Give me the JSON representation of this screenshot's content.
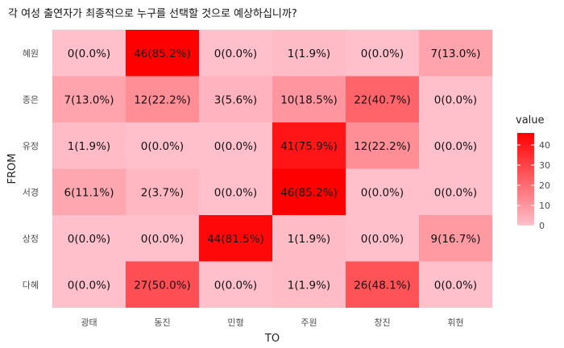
{
  "chart_data": {
    "type": "heatmap",
    "title": "각 여성 출연자가 최종적으로 누구를 선택할 것으로 예상하십니까?",
    "xlabel": "TO",
    "ylabel": "FROM",
    "x_categories": [
      "광태",
      "동진",
      "민형",
      "주원",
      "창진",
      "휘현"
    ],
    "y_categories": [
      "혜원",
      "종은",
      "유정",
      "서경",
      "상정",
      "다혜"
    ],
    "values": [
      [
        0,
        46,
        0,
        1,
        0,
        7
      ],
      [
        7,
        12,
        3,
        10,
        22,
        0
      ],
      [
        1,
        0,
        0,
        41,
        12,
        0
      ],
      [
        6,
        2,
        0,
        46,
        0,
        0
      ],
      [
        0,
        0,
        44,
        1,
        0,
        9
      ],
      [
        0,
        27,
        0,
        1,
        26,
        0
      ]
    ],
    "cell_labels": [
      [
        "0(0.0%)",
        "46(85.2%)",
        "0(0.0%)",
        "1(1.9%)",
        "0(0.0%)",
        "7(13.0%)"
      ],
      [
        "7(13.0%)",
        "12(22.2%)",
        "3(5.6%)",
        "10(18.5%)",
        "22(40.7%)",
        "0(0.0%)"
      ],
      [
        "1(1.9%)",
        "0(0.0%)",
        "0(0.0%)",
        "41(75.9%)",
        "12(22.2%)",
        "0(0.0%)"
      ],
      [
        "6(11.1%)",
        "2(3.7%)",
        "0(0.0%)",
        "46(85.2%)",
        "0(0.0%)",
        "0(0.0%)"
      ],
      [
        "0(0.0%)",
        "0(0.0%)",
        "44(81.5%)",
        "1(1.9%)",
        "0(0.0%)",
        "9(16.7%)"
      ],
      [
        "0(0.0%)",
        "27(50.0%)",
        "0(0.0%)",
        "1(1.9%)",
        "26(48.1%)",
        "0(0.0%)"
      ]
    ],
    "color_scale": {
      "low": "#ffc0cb",
      "high": "#ff0000",
      "min": 0,
      "max": 46
    },
    "legend": {
      "title": "value",
      "ticks": [
        0,
        10,
        20,
        30,
        40
      ],
      "placement": "right"
    },
    "grid": true
  }
}
